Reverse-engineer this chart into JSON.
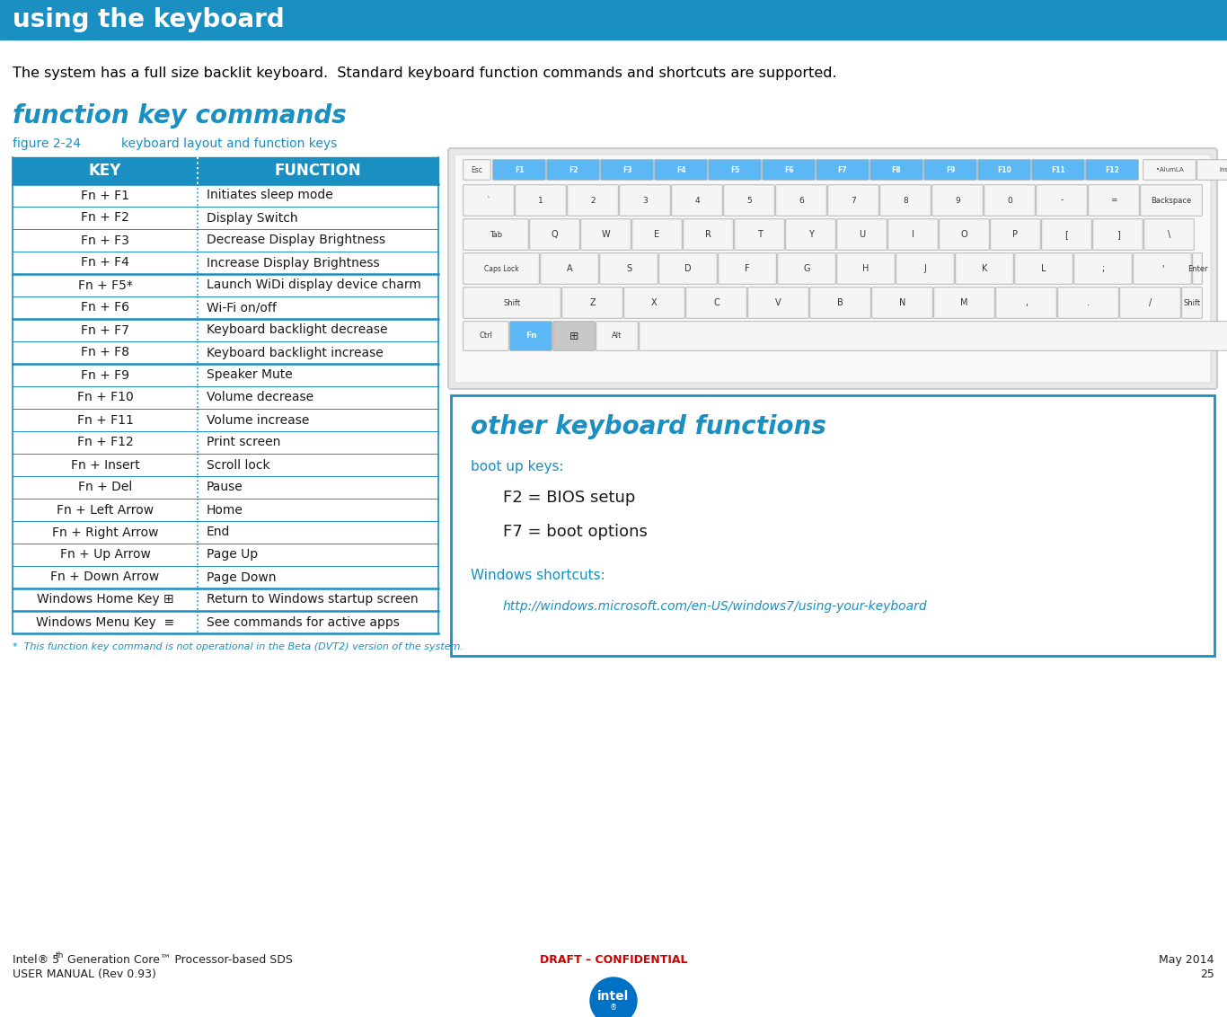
{
  "page_title": "using the keyboard",
  "page_title_bg": "#1a8fc1",
  "page_title_color": "#ffffff",
  "intro_text": "The system has a full size backlit keyboard.  Standard keyboard function commands and shortcuts are supported.",
  "section_title": "function key commands",
  "section_title_color": "#1a8fc1",
  "figure_label": "figure 2-24",
  "figure_desc": "keyboard layout and function keys",
  "figure_color": "#1a8fc1",
  "table_header_bg": "#1a8fc1",
  "table_header_color": "#ffffff",
  "table_border_color": "#1a8fc1",
  "table_keys": [
    "Fn + F1",
    "Fn + F2",
    "Fn + F3",
    "Fn + F4",
    "Fn + F5*",
    "Fn + F6",
    "Fn + F7",
    "Fn + F8",
    "Fn + F9",
    "Fn + F10",
    "Fn + F11",
    "Fn + F12",
    "Fn + Insert",
    "Fn + Del",
    "Fn + Left Arrow",
    "Fn + Right Arrow",
    "Fn + Up Arrow",
    "Fn + Down Arrow",
    "Windows Home Key ⊞",
    "Windows Menu Key  ≡"
  ],
  "table_functions": [
    "Initiates sleep mode",
    "Display Switch",
    "Decrease Display Brightness",
    "Increase Display Brightness",
    "Launch WiDi display device charm",
    "Wi-Fi on/off",
    "Keyboard backlight decrease",
    "Keyboard backlight increase",
    "Speaker Mute",
    "Volume decrease",
    "Volume increase",
    "Print screen",
    "Scroll lock",
    "Pause",
    "Home",
    "End",
    "Page Up",
    "Page Down",
    "Return to Windows startup screen",
    "See commands for active apps"
  ],
  "footnote": "*  This function key command is not operational in the Beta (DVT2) version of the system.",
  "footnote_color": "#1a8fc1",
  "right_box_title": "other keyboard functions",
  "right_box_title_color": "#1a8fc1",
  "right_box_border": "#1a8fc1",
  "boot_label": "boot up keys:",
  "boot_label_color": "#1a8fc1",
  "boot_f2": "F2 = BIOS setup",
  "boot_f7": "F7 = boot options",
  "windows_label": "Windows shortcuts:",
  "windows_label_color": "#1a8fc1",
  "windows_url": "http://windows.microsoft.com/en-US/windows7/using-your-keyboard",
  "windows_url_color": "#1a8fc1",
  "footer_center": "DRAFT – CONFIDENTIAL",
  "footer_center_color": "#cc0000",
  "bg_color": "#ffffff",
  "thick_row_indices": [
    0,
    4,
    6,
    8,
    18,
    19
  ],
  "key_blue": "#5bb8f5",
  "key_white": "#f0f0f0",
  "key_gray": "#c0c0c0",
  "key_dark": "#888888"
}
